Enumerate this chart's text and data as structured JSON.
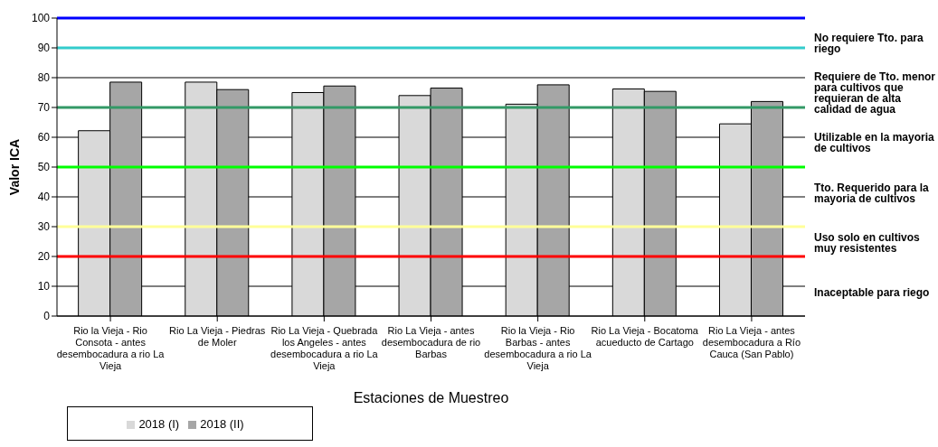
{
  "chart_data": {
    "type": "bar",
    "xlabel": "Estaciones de Muestreo",
    "ylabel": "Valor ICA",
    "categories": [
      "Rio la Vieja - Rio Consota - antes desembocadura a rio La Vieja",
      "Rio La Vieja - Piedras de Moler",
      "Rio La Vieja - Quebrada los Angeles - antes desembocadura a rio La Vieja",
      "Rio La Vieja - antes desembocadura de rio Barbas",
      "Rio la Vieja - Rio Barbas - antes desembocadura a rio La Vieja",
      "Rio La Vieja - Bocatoma acueducto de Cartago",
      "Rio La Vieja - antes desembocadura a Río Cauca (San Pablo)"
    ],
    "series": [
      {
        "name": "2018 (I)",
        "color": "#d9d9d9",
        "values": [
          62.2,
          78.5,
          75,
          74,
          71.1,
          76.2,
          64.5
        ]
      },
      {
        "name": "2018 (II)",
        "color": "#a6a6a6",
        "values": [
          78.5,
          76,
          77.2,
          76.5,
          77.6,
          75.4,
          72
        ]
      }
    ],
    "ylim": [
      0,
      100
    ],
    "yticks": [
      0,
      10,
      20,
      30,
      40,
      50,
      60,
      70,
      80,
      90,
      100
    ],
    "grid": "y",
    "legend": "bottom left",
    "ref_lines": [
      {
        "axis": "y",
        "value": 100,
        "color": "#0000ff"
      },
      {
        "axis": "y",
        "value": 90,
        "color": "#33cccc"
      },
      {
        "axis": "y",
        "value": 70,
        "color": "#339966"
      },
      {
        "axis": "y",
        "value": 50,
        "color": "#00ff00"
      },
      {
        "axis": "y",
        "value": 30,
        "color": "#ffff99"
      },
      {
        "axis": "y",
        "value": 20,
        "color": "#ff0000"
      }
    ],
    "annotations": [
      "No requiere Tto. para riego",
      "Requiere de Tto. menor para cultivos que requieran de alta calidad de agua",
      "Utilizable en la mayoria de cultivos",
      "Tto. Requerido para la mayoria de cultivos",
      "Uso solo en cultivos muy resistentes",
      "Inaceptable para riego"
    ]
  }
}
